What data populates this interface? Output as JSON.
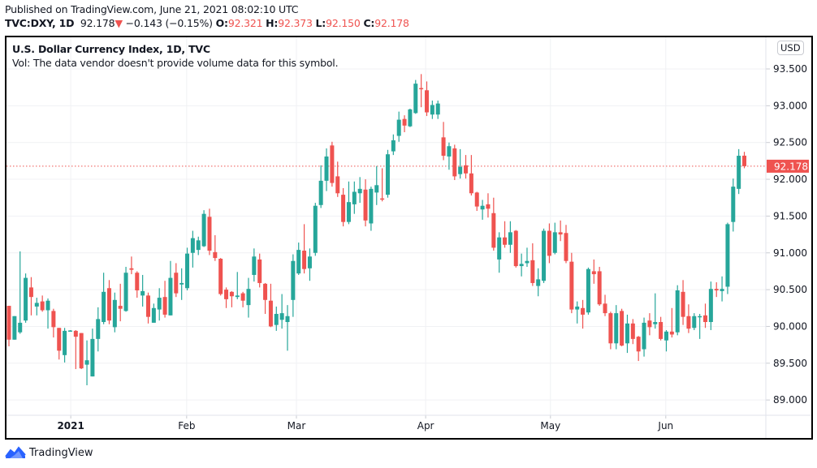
{
  "header": {
    "published": "Published on TradingView.com, June 21, 2021 08:02:10 UTC",
    "symbol": "TVC:DXY, 1D",
    "last": "92.178",
    "change": "−0.143 (−0.15%)",
    "o_label": "O:",
    "o": "92.321",
    "h_label": "H:",
    "h": "92.373",
    "l_label": "L:",
    "l": "92.150",
    "c_label": "C:",
    "c": "92.178"
  },
  "legend": {
    "title": "U.S. Dollar Currency Index, 1D, TVC",
    "volume_note": "Vol: The data vendor doesn't provide volume data for this symbol."
  },
  "currency_button": "USD",
  "footer": {
    "brand": "TradingView"
  },
  "colors": {
    "up": "#26a69a",
    "down": "#ef5350",
    "grid": "#f0f3fa",
    "brand": "#2962ff"
  },
  "icons": {
    "down-arrow": "▼",
    "logo": "tradingview-logo-icon"
  },
  "chart_data": {
    "type": "candlestick",
    "title": "U.S. Dollar Currency Index, 1D, TVC",
    "ylabel": "USD",
    "ylim": [
      88.6,
      93.95
    ],
    "y_ticks": [
      "89.000",
      "89.500",
      "90.000",
      "90.500",
      "91.000",
      "91.500",
      "92.000",
      "92.500",
      "93.000",
      "93.500"
    ],
    "x_ticks": [
      {
        "label": "2021",
        "bar": 11.1,
        "bold": true
      },
      {
        "label": "Feb",
        "bar": 31.9
      },
      {
        "label": "Mar",
        "bar": 51.6
      },
      {
        "label": "Apr",
        "bar": 74.8
      },
      {
        "label": "May",
        "bar": 97.2
      },
      {
        "label": "Jun",
        "bar": 117.9
      }
    ],
    "last_price": 92.178,
    "last_price_label": "92.178",
    "grid": true,
    "ohlc": [
      [
        90.28,
        90.28,
        89.73,
        89.82
      ],
      [
        89.82,
        90.14,
        89.82,
        90.14
      ],
      [
        89.92,
        91.02,
        89.9,
        90.05
      ],
      [
        90.08,
        90.72,
        90.05,
        90.66
      ],
      [
        90.53,
        90.67,
        90.15,
        90.4
      ],
      [
        90.27,
        90.39,
        90.15,
        90.32
      ],
      [
        90.34,
        90.42,
        90.2,
        90.22
      ],
      [
        90.22,
        90.38,
        89.97,
        90.35
      ],
      [
        90.21,
        90.24,
        89.85,
        89.99
      ],
      [
        89.98,
        89.98,
        89.55,
        89.67
      ],
      [
        89.61,
        89.98,
        89.51,
        89.94
      ],
      [
        89.94,
        89.95,
        89.93,
        89.945
      ],
      [
        89.94,
        89.95,
        89.42,
        89.86
      ],
      [
        89.91,
        89.91,
        89.42,
        89.43
      ],
      [
        89.48,
        89.81,
        89.2,
        89.54
      ],
      [
        89.32,
        89.97,
        89.32,
        89.83
      ],
      [
        89.83,
        90.26,
        89.66,
        90.1
      ],
      [
        90.06,
        90.73,
        90.03,
        90.47
      ],
      [
        90.52,
        90.63,
        90.03,
        90.08
      ],
      [
        89.99,
        90.46,
        89.92,
        90.36
      ],
      [
        90.28,
        90.58,
        90.07,
        90.24
      ],
      [
        90.21,
        90.81,
        90.2,
        90.73
      ],
      [
        90.79,
        90.95,
        90.71,
        90.77
      ],
      [
        90.73,
        90.75,
        90.39,
        90.49
      ],
      [
        90.42,
        90.7,
        90.27,
        90.48
      ],
      [
        90.42,
        90.46,
        90.04,
        90.13
      ],
      [
        90.05,
        90.31,
        90.05,
        90.25
      ],
      [
        90.23,
        90.52,
        90.08,
        90.39
      ],
      [
        90.4,
        90.62,
        90.12,
        90.16
      ],
      [
        90.15,
        90.89,
        90.15,
        90.66
      ],
      [
        90.73,
        90.86,
        90.4,
        90.45
      ],
      [
        90.57,
        90.79,
        90.36,
        90.59
      ],
      [
        90.52,
        91.07,
        90.49,
        90.99
      ],
      [
        91.0,
        91.3,
        90.8,
        91.2
      ],
      [
        91.04,
        91.22,
        90.97,
        91.17
      ],
      [
        91.09,
        91.58,
        91.08,
        91.53
      ],
      [
        91.49,
        91.6,
        90.97,
        91.03
      ],
      [
        91.01,
        91.24,
        90.89,
        90.93
      ],
      [
        90.92,
        90.93,
        90.42,
        90.44
      ],
      [
        90.5,
        90.53,
        90.25,
        90.37
      ],
      [
        90.47,
        90.48,
        90.26,
        90.41
      ],
      [
        90.4,
        90.74,
        90.37,
        90.42
      ],
      [
        90.45,
        90.47,
        90.26,
        90.35
      ],
      [
        90.29,
        90.66,
        90.12,
        90.51
      ],
      [
        90.7,
        91.06,
        90.61,
        90.95
      ],
      [
        90.91,
        90.99,
        90.53,
        90.59
      ],
      [
        90.58,
        90.59,
        90.17,
        90.36
      ],
      [
        90.35,
        90.58,
        89.99,
        90.0
      ],
      [
        90.02,
        90.27,
        89.94,
        90.17
      ],
      [
        90.09,
        90.44,
        89.97,
        90.18
      ],
      [
        90.06,
        90.29,
        89.67,
        90.14
      ],
      [
        90.36,
        90.98,
        90.13,
        90.89
      ],
      [
        90.72,
        91.14,
        90.7,
        91.04
      ],
      [
        91.03,
        91.39,
        90.72,
        90.78
      ],
      [
        90.79,
        91.06,
        90.62,
        90.95
      ],
      [
        91.0,
        91.68,
        90.96,
        91.64
      ],
      [
        91.65,
        92.19,
        91.61,
        91.98
      ],
      [
        91.98,
        92.42,
        91.84,
        92.31
      ],
      [
        92.46,
        92.51,
        91.9,
        91.95
      ],
      [
        92.04,
        92.24,
        91.76,
        91.81
      ],
      [
        91.79,
        91.88,
        91.36,
        91.42
      ],
      [
        91.42,
        91.97,
        91.39,
        91.69
      ],
      [
        91.66,
        91.97,
        91.53,
        91.83
      ],
      [
        91.81,
        92.03,
        91.68,
        91.87
      ],
      [
        91.86,
        92.0,
        91.36,
        91.44
      ],
      [
        91.4,
        91.9,
        91.3,
        91.87
      ],
      [
        91.82,
        92.18,
        91.65,
        91.92
      ],
      [
        91.74,
        92.15,
        91.7,
        91.73
      ],
      [
        91.79,
        92.4,
        91.75,
        92.34
      ],
      [
        92.38,
        92.61,
        92.33,
        92.53
      ],
      [
        92.59,
        92.92,
        92.51,
        92.81
      ],
      [
        92.82,
        92.87,
        92.64,
        92.73
      ],
      [
        92.72,
        92.96,
        92.71,
        92.95
      ],
      [
        92.9,
        93.35,
        92.89,
        93.3
      ],
      [
        93.24,
        93.43,
        92.98,
        93.23
      ],
      [
        93.21,
        93.33,
        92.86,
        92.91
      ],
      [
        92.88,
        93.07,
        92.82,
        93.01
      ],
      [
        92.88,
        93.07,
        92.82,
        93.03
      ],
      [
        92.57,
        92.78,
        92.26,
        92.32
      ],
      [
        92.31,
        92.5,
        92.13,
        92.45
      ],
      [
        92.42,
        92.47,
        91.99,
        92.04
      ],
      [
        92.07,
        92.41,
        92.01,
        92.17
      ],
      [
        92.19,
        92.33,
        92.01,
        92.08
      ],
      [
        92.08,
        92.33,
        91.78,
        91.81
      ],
      [
        91.82,
        91.83,
        91.57,
        91.63
      ],
      [
        91.59,
        91.72,
        91.45,
        91.64
      ],
      [
        91.66,
        91.81,
        91.48,
        91.6
      ],
      [
        91.54,
        91.75,
        91.03,
        91.07
      ],
      [
        90.91,
        91.28,
        90.73,
        91.21
      ],
      [
        91.21,
        91.43,
        91.07,
        91.11
      ],
      [
        91.11,
        91.43,
        91.0,
        91.28
      ],
      [
        91.3,
        91.31,
        90.8,
        90.82
      ],
      [
        90.82,
        90.99,
        90.68,
        90.85
      ],
      [
        90.86,
        91.07,
        90.81,
        90.89
      ],
      [
        90.9,
        91.13,
        90.55,
        90.59
      ],
      [
        90.55,
        90.79,
        90.41,
        90.64
      ],
      [
        90.62,
        91.33,
        90.59,
        91.3
      ],
      [
        91.3,
        91.4,
        90.86,
        90.96
      ],
      [
        91.0,
        91.41,
        90.98,
        91.28
      ],
      [
        91.28,
        91.44,
        91.16,
        91.25
      ],
      [
        91.27,
        91.38,
        90.86,
        90.89
      ],
      [
        90.88,
        91.0,
        90.18,
        90.23
      ],
      [
        90.23,
        90.34,
        90.04,
        90.27
      ],
      [
        90.25,
        90.36,
        89.97,
        90.16
      ],
      [
        90.19,
        90.8,
        90.16,
        90.78
      ],
      [
        90.75,
        90.91,
        90.58,
        90.71
      ],
      [
        90.75,
        90.81,
        90.28,
        90.3
      ],
      [
        90.31,
        90.43,
        90.14,
        90.18
      ],
      [
        90.18,
        90.2,
        89.69,
        89.77
      ],
      [
        89.77,
        90.29,
        89.69,
        90.18
      ],
      [
        90.21,
        90.24,
        89.73,
        89.74
      ],
      [
        89.77,
        90.16,
        89.64,
        90.04
      ],
      [
        90.04,
        90.1,
        89.76,
        89.83
      ],
      [
        89.86,
        89.87,
        89.53,
        89.66
      ],
      [
        89.69,
        90.12,
        89.59,
        90.05
      ],
      [
        90.08,
        90.18,
        89.88,
        89.99
      ],
      [
        90.03,
        90.45,
        89.97,
        90.06
      ],
      [
        90.06,
        90.13,
        89.81,
        89.83
      ],
      [
        89.81,
        89.95,
        89.66,
        89.93
      ],
      [
        89.93,
        90.25,
        89.85,
        89.89
      ],
      [
        89.92,
        90.56,
        89.88,
        90.49
      ],
      [
        90.47,
        90.63,
        90.02,
        90.13
      ],
      [
        90.14,
        90.3,
        89.91,
        89.97
      ],
      [
        89.98,
        90.18,
        89.95,
        90.14
      ],
      [
        90.13,
        90.17,
        89.83,
        90.14
      ],
      [
        90.15,
        90.31,
        89.98,
        90.06
      ],
      [
        90.06,
        90.61,
        89.95,
        90.51
      ],
      [
        90.51,
        90.6,
        90.4,
        90.49
      ],
      [
        90.48,
        90.68,
        90.34,
        90.51
      ],
      [
        90.54,
        91.41,
        90.44,
        91.39
      ],
      [
        91.42,
        92.01,
        91.29,
        91.9
      ],
      [
        91.87,
        92.41,
        91.8,
        92.32
      ],
      [
        92.321,
        92.373,
        92.15,
        92.178
      ]
    ]
  }
}
